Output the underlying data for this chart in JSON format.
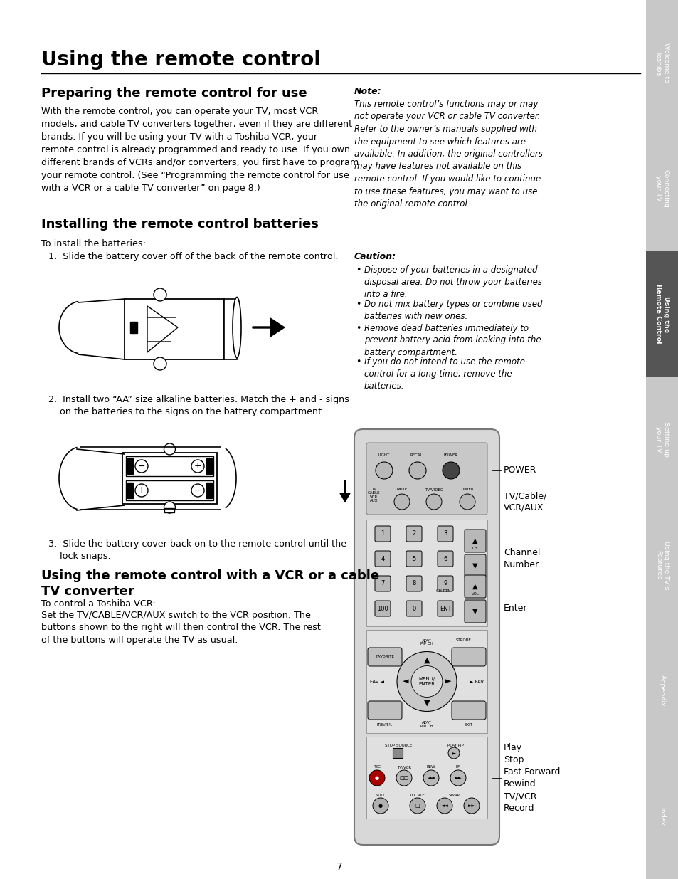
{
  "bg_color": "#ffffff",
  "main_title": "Using the remote control",
  "sidebar_items": [
    {
      "label": "Welcome to\nToshiba",
      "active": false
    },
    {
      "label": "Connecting\nyour TV",
      "active": false
    },
    {
      "label": "Using the\nRemote Control",
      "active": true
    },
    {
      "label": "Setting up\nyour TV",
      "active": false
    },
    {
      "label": "Using the TV’s\nFeatures",
      "active": false
    },
    {
      "label": "Appendix",
      "active": false
    },
    {
      "label": "Index",
      "active": false
    }
  ],
  "sidebar_active_color": "#555555",
  "sidebar_inactive_color": "#c8c8c8",
  "section1_title": "Preparing the remote control for use",
  "section1_body": "With the remote control, you can operate your TV, most VCR\nmodels, and cable TV converters together, even if they are different\nbrands. If you will be using your TV with a Toshiba VCR, your\nremote control is already programmed and ready to use. If you own\ndifferent brands of VCRs and/or converters, you first have to program\nyour remote control. (See “Programming the remote control for use\nwith a VCR or a cable TV converter” on page 8.)",
  "note_title": "Note:",
  "note_body": "This remote control’s functions may or may\nnot operate your VCR or cable TV converter.\nRefer to the owner’s manuals supplied with\nthe equipment to see which features are\navailable. In addition, the original controllers\nmay have features not available on this\nremote control. If you would like to continue\nto use these features, you may want to use\nthe original remote control.",
  "section2_title": "Installing the remote control batteries",
  "section2_intro": "To install the batteries:",
  "step1": "1.  Slide the battery cover off of the back of the remote control.",
  "caution_title": "Caution:",
  "caution_bullets": [
    "Dispose of your batteries in a designated\ndisposal area. Do not throw your batteries\ninto a fire.",
    "Do not mix battery types or combine used\nbatteries with new ones.",
    "Remove dead batteries immediately to\nprevent battery acid from leaking into the\nbattery compartment.",
    "If you do not intend to use the remote\ncontrol for a long time, remove the\nbatteries."
  ],
  "step2": "2.  Install two “AA” size alkaline batteries. Match the + and - signs\n    on the batteries to the signs on the battery compartment.",
  "step3": "3.  Slide the battery cover back on to the remote control until the\n    lock snaps.",
  "section3_title": "Using the remote control with a VCR or a cable\nTV converter",
  "section3_intro": "To control a Toshiba VCR:",
  "section3_body": "Set the TV/CABLE/VCR/AUX switch to the VCR position. The\nbuttons shown to the right will then control the VCR. The rest\nof the buttons will operate the TV as usual.",
  "page_number": "7"
}
